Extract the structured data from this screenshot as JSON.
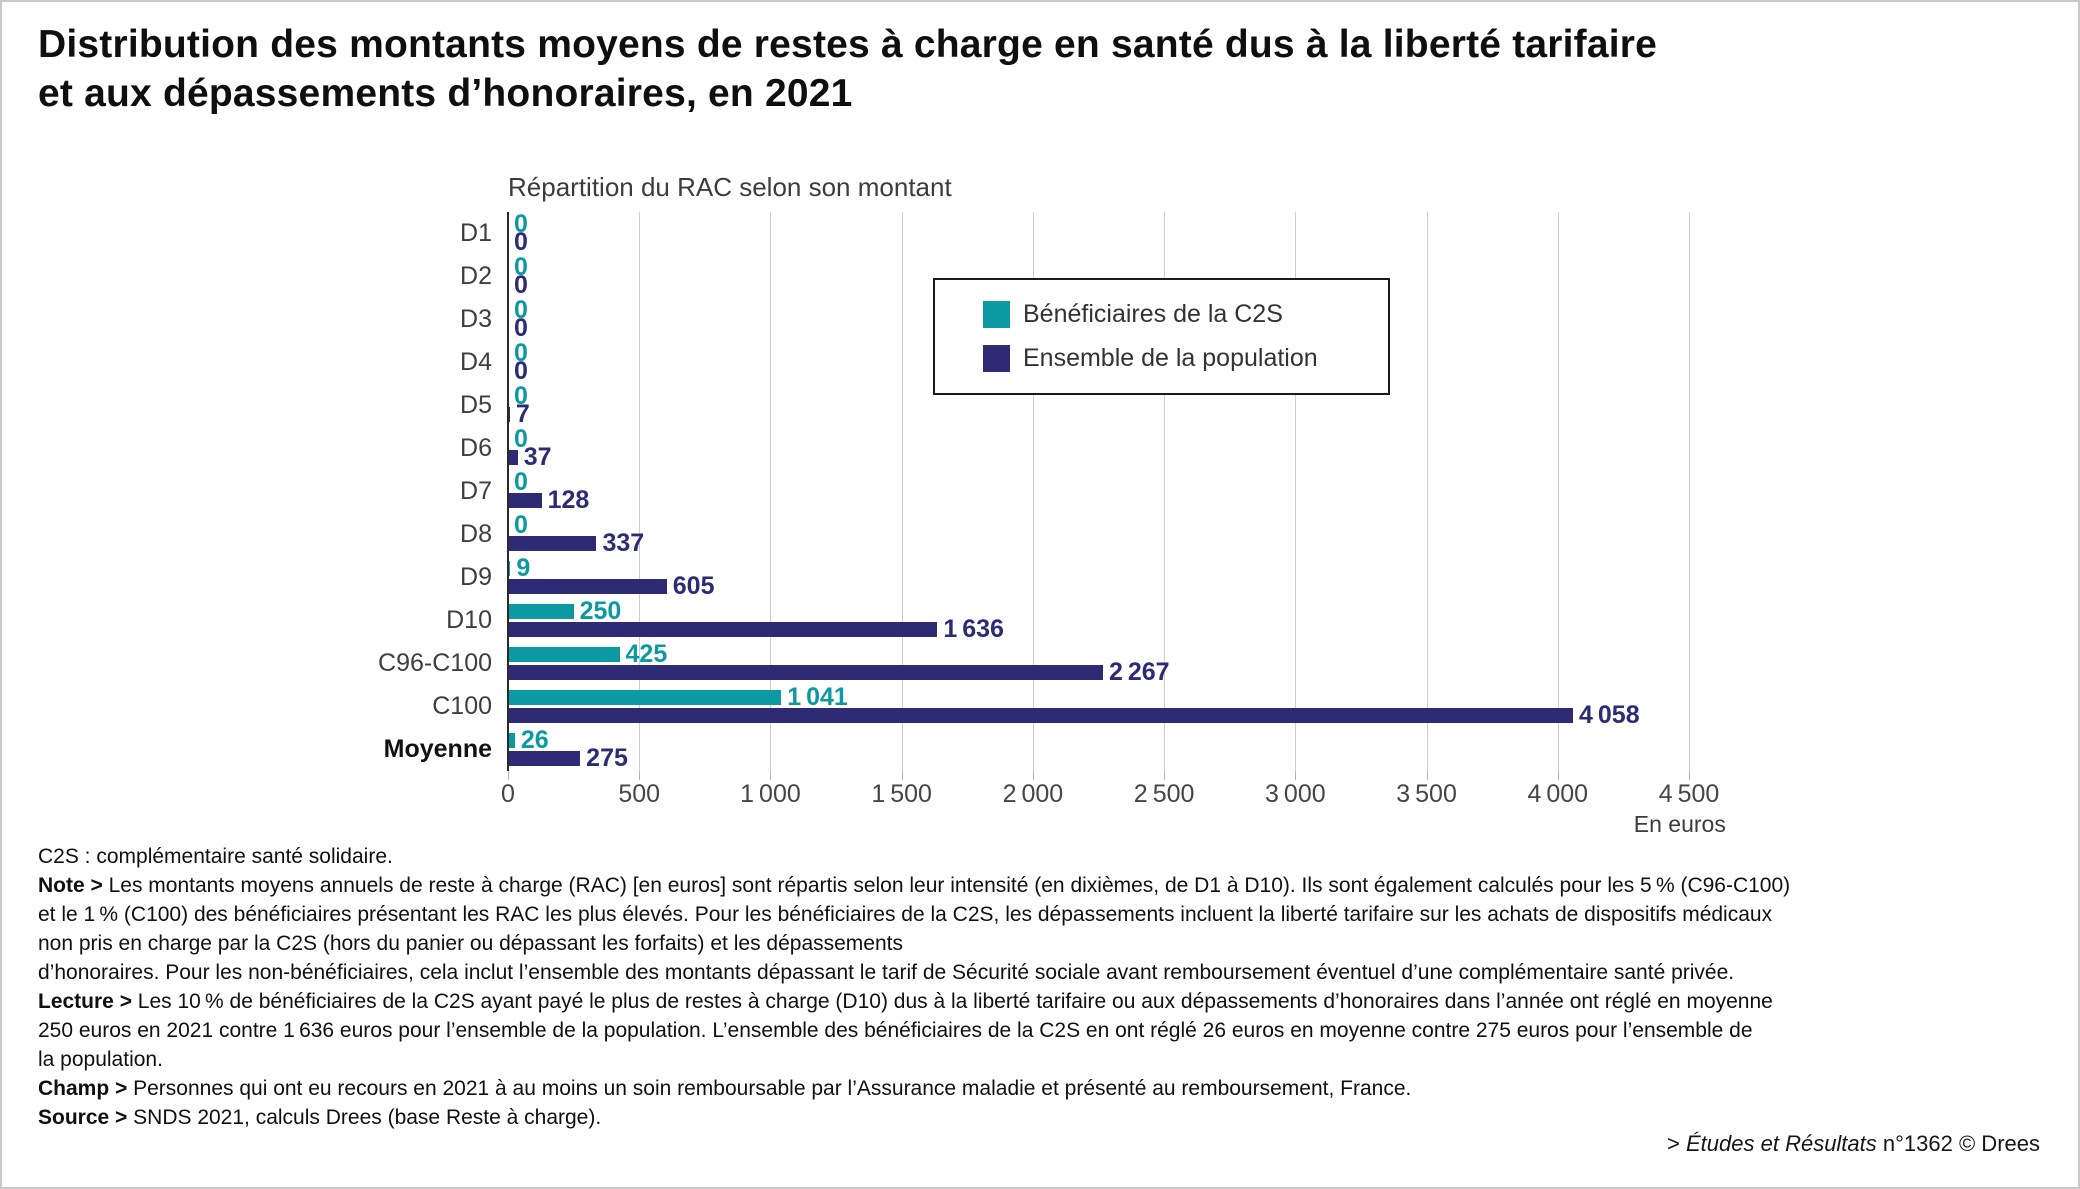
{
  "title": {
    "line1": "Distribution des montants moyens de restes à charge en santé dus à la liberté tarifaire",
    "line2": "et aux dépassements d’honoraires, en 2021"
  },
  "chart_data": {
    "type": "bar",
    "orientation": "horizontal",
    "subtitle": "Répartition du RAC selon son montant",
    "categories": [
      "D1",
      "D2",
      "D3",
      "D4",
      "D5",
      "D6",
      "D7",
      "D8",
      "D9",
      "D10",
      "C96-C100",
      "C100",
      "Moyenne"
    ],
    "bold_categories": [
      "Moyenne"
    ],
    "series": [
      {
        "name": "Bénéficiaires de la C2S",
        "color": "#0d99a1",
        "values": [
          0,
          0,
          0,
          0,
          0,
          0,
          0,
          0,
          9,
          250,
          425,
          1041,
          26
        ],
        "labels": [
          "0",
          "0",
          "0",
          "0",
          "0",
          "0",
          "0",
          "0",
          "9",
          "250",
          "425",
          "1 041",
          "26"
        ]
      },
      {
        "name": "Ensemble de la population",
        "color": "#2e2a74",
        "values": [
          0,
          0,
          0,
          0,
          7,
          37,
          128,
          337,
          605,
          1636,
          2267,
          4058,
          275
        ],
        "labels": [
          "0",
          "0",
          "0",
          "0",
          "7",
          "37",
          "128",
          "337",
          "605",
          "1 636",
          "2 267",
          "4 058",
          "275"
        ]
      }
    ],
    "xlim": [
      0,
      4500
    ],
    "x_ticks": [
      {
        "value": 0,
        "label": "0"
      },
      {
        "value": 500,
        "label": "500"
      },
      {
        "value": 1000,
        "label": "1 000"
      },
      {
        "value": 1500,
        "label": "1 500"
      },
      {
        "value": 2000,
        "label": "2 000"
      },
      {
        "value": 2500,
        "label": "2 500"
      },
      {
        "value": 3000,
        "label": "3 000"
      },
      {
        "value": 3500,
        "label": "3 500"
      },
      {
        "value": 4000,
        "label": "4 000"
      },
      {
        "value": 4500,
        "label": "4 500"
      }
    ],
    "axis_unit": "En euros",
    "grid": true,
    "legend_position": "inside-top-right"
  },
  "footnotes": [
    {
      "label": "",
      "text": "C2S : complémentaire santé solidaire."
    },
    {
      "label": "Note >",
      "text": "Les montants moyens annuels de reste à charge (RAC) [en euros] sont répartis selon leur intensité (en dixièmes, de D1 à D10). Ils sont également calculés pour les 5 % (C96-C100)"
    },
    {
      "label": "",
      "text": "et le 1 % (C100) des bénéficiaires présentant les RAC les plus élevés. Pour les bénéficiaires de la C2S, les dépassements incluent la liberté tarifaire sur les achats de dispositifs médicaux"
    },
    {
      "label": "",
      "text": "non pris en charge par la C2S (hors du panier ou dépassant les forfaits) et les dépassements"
    },
    {
      "label": "",
      "text": "d’honoraires. Pour les non-bénéficiaires, cela inclut l’ensemble des montants dépassant le tarif de Sécurité sociale avant remboursement éventuel d’une complémentaire santé privée."
    },
    {
      "label": "Lecture >",
      "text": "Les 10 % de bénéficiaires de la C2S ayant payé le plus de restes à charge (D10) dus à la liberté tarifaire ou aux dépassements d’honoraires dans l’année ont réglé en moyenne"
    },
    {
      "label": "",
      "text": "250 euros en 2021 contre 1 636 euros pour l’ensemble de la population. L’ensemble des bénéficiaires de la C2S en ont réglé 26 euros en moyenne contre 275 euros pour l’ensemble de"
    },
    {
      "label": "",
      "text": "la population."
    },
    {
      "label": "Champ >",
      "text": "Personnes qui ont eu recours en 2021 à au moins un soin remboursable par l’Assurance maladie et présenté au remboursement, France."
    },
    {
      "label": "Source >",
      "text": "SNDS 2021, calculs Drees (base Reste à charge)."
    }
  ],
  "credit": {
    "prefix": "> ",
    "italic": "Études et Résultats",
    "suffix": " n°1362 © Drees"
  }
}
